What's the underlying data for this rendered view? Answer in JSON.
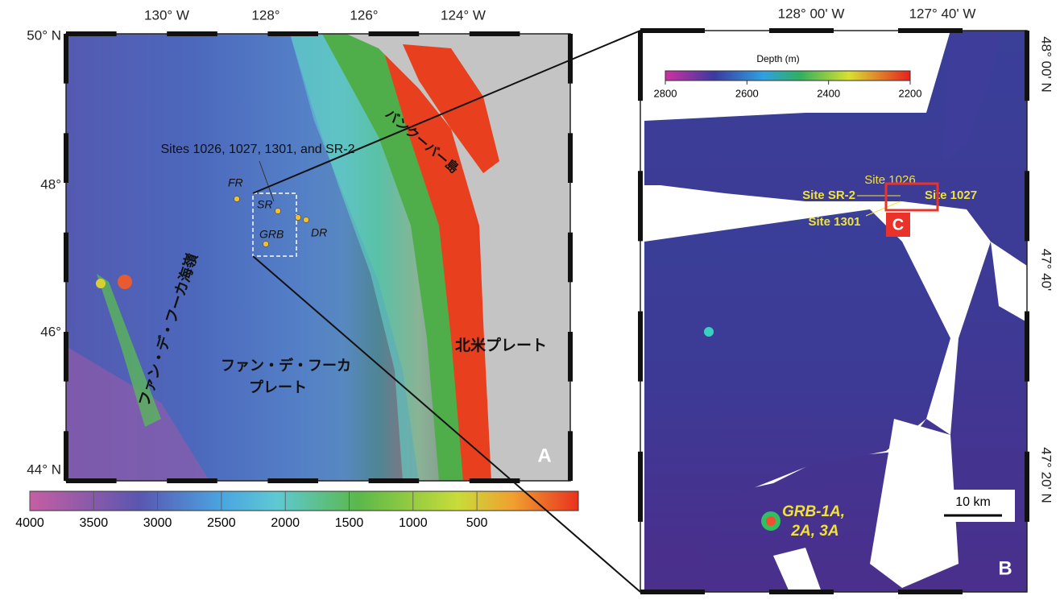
{
  "panel_a": {
    "lon_labels": [
      "130° W",
      "128°",
      "126°",
      "124° W"
    ],
    "lat_labels": [
      "50° N",
      "48°",
      "46°",
      "44° N"
    ],
    "island_label": "バンクーバー島",
    "sites_label": "Sites 1026, 1027, 1301, and SR-2",
    "site_markers": [
      "FR",
      "SR",
      "GRB",
      "DR"
    ],
    "ridge_label": "ファン・デ・フーカ海嶺",
    "plate_label": [
      "ファン・デ・フーカ",
      "プレート"
    ],
    "na_plate_label": "北米プレート",
    "panel_letter": "A",
    "colorbar_ticks": [
      4000,
      3500,
      3000,
      2500,
      2000,
      1500,
      1000,
      500
    ]
  },
  "panel_b": {
    "lon_labels": [
      "128° 00' W",
      "127° 40' W"
    ],
    "lat_labels": [
      "48° 00' N",
      "47° 40'",
      "47° 20' N"
    ],
    "colorbar_title": "Depth (m)",
    "colorbar_ticks": [
      2800,
      2600,
      2400,
      2200
    ],
    "site_labels": [
      "Site 1026",
      "Site SR-2",
      "Site 1027",
      "Site 1301"
    ],
    "inset_letter": "C",
    "grb_label": [
      "GRB-1A,",
      "2A, 3A"
    ],
    "scale_label": "10 km",
    "panel_letter": "B"
  }
}
